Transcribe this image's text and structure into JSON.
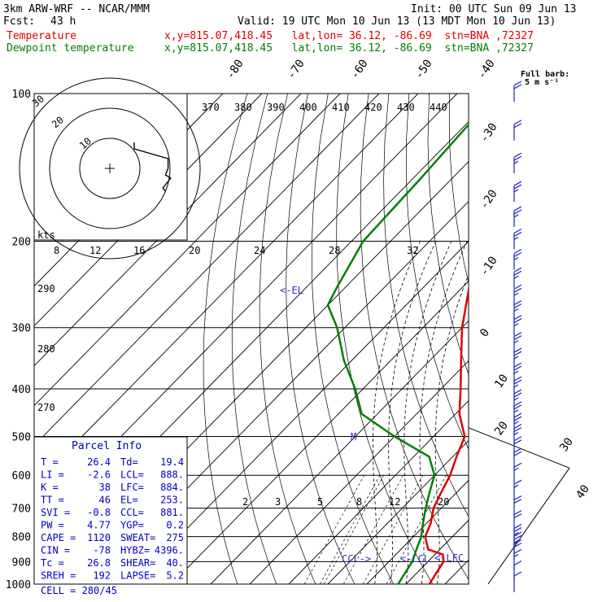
{
  "header": {
    "model": "3km ARW-WRF -- NCAR/MMM",
    "init": "Init: 00 UTC Sun 09 Jun 13",
    "fcst_label": "Fcst:",
    "fcst_value": "43 h",
    "valid": "Valid: 19 UTC Mon 10 Jun 13 (13 MDT Mon 10 Jun 13)",
    "temp_label": "Temperature",
    "dew_label": "Dewpoint temperature",
    "location": "x,y=815.07,418.45   lat,lon= 36.12, -86.69  stn=BNA ,72327"
  },
  "wind_header": {
    "line1": "Full barb:",
    "line2": "5 m s⁻¹"
  },
  "hodo": {
    "kts": "kts",
    "rings": [
      "10",
      "20",
      "30"
    ]
  },
  "parcel": {
    "title": "Parcel Info",
    "rows": [
      {
        "l1": "T",
        "v1": "26.4",
        "l2": "Td",
        "v2": "19.4"
      },
      {
        "l1": "LI",
        "v1": "-2.6",
        "l2": "LCL",
        "v2": "888."
      },
      {
        "l1": "K",
        "v1": "38",
        "l2": "LFC",
        "v2": "884."
      },
      {
        "l1": "TT",
        "v1": "46",
        "l2": "EL",
        "v2": "253."
      },
      {
        "l1": "SVI",
        "v1": "-0.8",
        "l2": "CCL",
        "v2": "881."
      },
      {
        "l1": "PW",
        "v1": "4.77",
        "l2": "YGP",
        "v2": "0.2"
      },
      {
        "l1": "CAPE",
        "v1": "1120",
        "l2": "SWEAT",
        "v2": "275"
      },
      {
        "l1": "CIN",
        "v1": "-78",
        "l2": "HYBZ",
        "v2": "4396."
      },
      {
        "l1": "Tc",
        "v1": "26.8",
        "l2": "SHEAR",
        "v2": "40."
      },
      {
        "l1": "SREH",
        "v1": "192",
        "l2": "LAPSE",
        "v2": "5.2"
      }
    ],
    "cell": "CELL = 280/45"
  },
  "annotations": {
    "el": "<-EL",
    "m": "M",
    "ccl": "CCL->",
    "lcl": "<-LCL",
    "lfc": "<-LFC"
  },
  "chart_data": {
    "type": "line",
    "pressure_levels": [
      100,
      200,
      300,
      400,
      500,
      600,
      700,
      800,
      900,
      1000
    ],
    "pressure_labels": [
      "100",
      "200",
      "300",
      "400",
      "500",
      "600",
      "700",
      "800",
      "900",
      "1000"
    ],
    "temperature_ticks": [
      "-80",
      "-70",
      "-60",
      "-50",
      "-40",
      "-30",
      "-20",
      "-10",
      "0",
      "10",
      "20",
      "30",
      "40"
    ],
    "theta_labels": [
      "370",
      "380",
      "390",
      "400",
      "410",
      "420",
      "430",
      "440"
    ],
    "theta_left_labels": [
      "290",
      "280",
      "270"
    ],
    "mixing_ratio_top": [
      "8",
      "12",
      "16",
      "20",
      "24",
      "28",
      "32"
    ],
    "mixing_ratio_low": [
      "2",
      "3",
      "5",
      "8",
      "12",
      "20"
    ],
    "series": [
      {
        "name": "Temperature",
        "color": "#e00000",
        "p": [
          100,
          150,
          180,
          200,
          250,
          300,
          350,
          400,
          450,
          500,
          550,
          600,
          650,
          700,
          750,
          800,
          850,
          870,
          900,
          950,
          1000
        ],
        "t": [
          -72,
          -60,
          -54,
          -48,
          -38,
          -30,
          -22,
          -15,
          -9,
          -2,
          1,
          4,
          6,
          8,
          11,
          13,
          17,
          22,
          24,
          25,
          26
        ]
      },
      {
        "name": "Dewpoint temperature",
        "color": "#008000",
        "p": [
          100,
          150,
          200,
          250,
          270,
          300,
          350,
          400,
          450,
          500,
          550,
          600,
          650,
          700,
          750,
          800,
          850,
          900,
          950,
          1000
        ],
        "t": [
          -80,
          -78,
          -77,
          -72,
          -70,
          -62,
          -52,
          -42,
          -34,
          -20,
          -6,
          0,
          3,
          6,
          9,
          12,
          14,
          16,
          17,
          18
        ]
      }
    ],
    "wind_barbs": {
      "p": [
        100,
        120,
        140,
        160,
        180,
        200,
        220,
        240,
        260,
        280,
        300,
        325,
        350,
        375,
        400,
        425,
        450,
        475,
        500,
        530,
        560,
        600,
        650,
        700,
        750,
        800,
        830,
        860,
        900,
        950,
        1000
      ],
      "speed_kt": [
        20,
        20,
        25,
        25,
        25,
        25,
        25,
        25,
        25,
        25,
        25,
        25,
        25,
        25,
        25,
        25,
        25,
        25,
        25,
        20,
        20,
        15,
        15,
        20,
        20,
        25,
        25,
        20,
        15,
        10,
        10
      ]
    },
    "hodograph": {
      "u": [
        0,
        0,
        13,
        13,
        12,
        14,
        13,
        11,
        12
      ],
      "v": [
        -5,
        -3,
        0,
        3,
        5,
        6,
        7,
        9,
        10
      ]
    }
  }
}
